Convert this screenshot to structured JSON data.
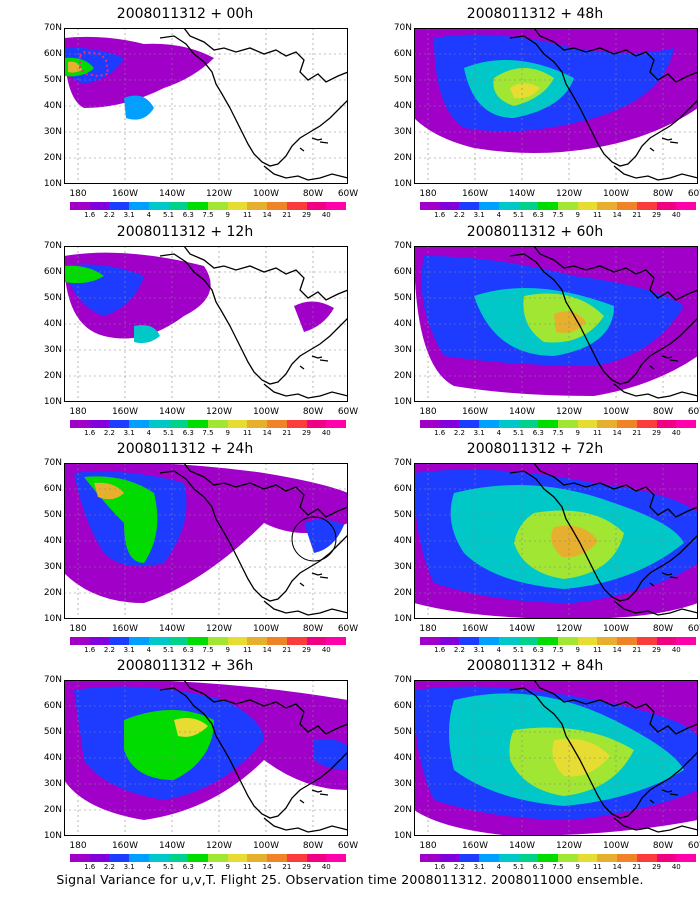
{
  "panels": [
    {
      "title": "2008011312 + 00h"
    },
    {
      "title": "2008011312 + 48h"
    },
    {
      "title": "2008011312 + 12h"
    },
    {
      "title": "2008011312 + 60h"
    },
    {
      "title": "2008011312 + 24h"
    },
    {
      "title": "2008011312 + 72h"
    },
    {
      "title": "2008011312 + 36h"
    },
    {
      "title": "2008011312 + 84h"
    }
  ],
  "lat_labels": [
    "70N",
    "60N",
    "50N",
    "40N",
    "30N",
    "20N",
    "10N"
  ],
  "lon_labels": [
    "180",
    "160W",
    "140W",
    "120W",
    "100W",
    "80W",
    "60W"
  ],
  "colorbar": {
    "labels": [
      "1.6",
      "2.2",
      "3.1",
      "4",
      "5.1",
      "6.3",
      "7.5",
      "9",
      "11",
      "14",
      "21",
      "29",
      "40"
    ],
    "colors": [
      "#a000c8",
      "#8200dc",
      "#1e3cff",
      "#00a0ff",
      "#00c8c8",
      "#00d28c",
      "#00dc00",
      "#a0e632",
      "#e6dc32",
      "#e6af2d",
      "#f08228",
      "#fa3c3c",
      "#f00082",
      "#ff00aa"
    ]
  },
  "footer": "Signal Variance for u,v,T. Flight 25. Observation time 2008011312. 2008011000 ensemble."
}
